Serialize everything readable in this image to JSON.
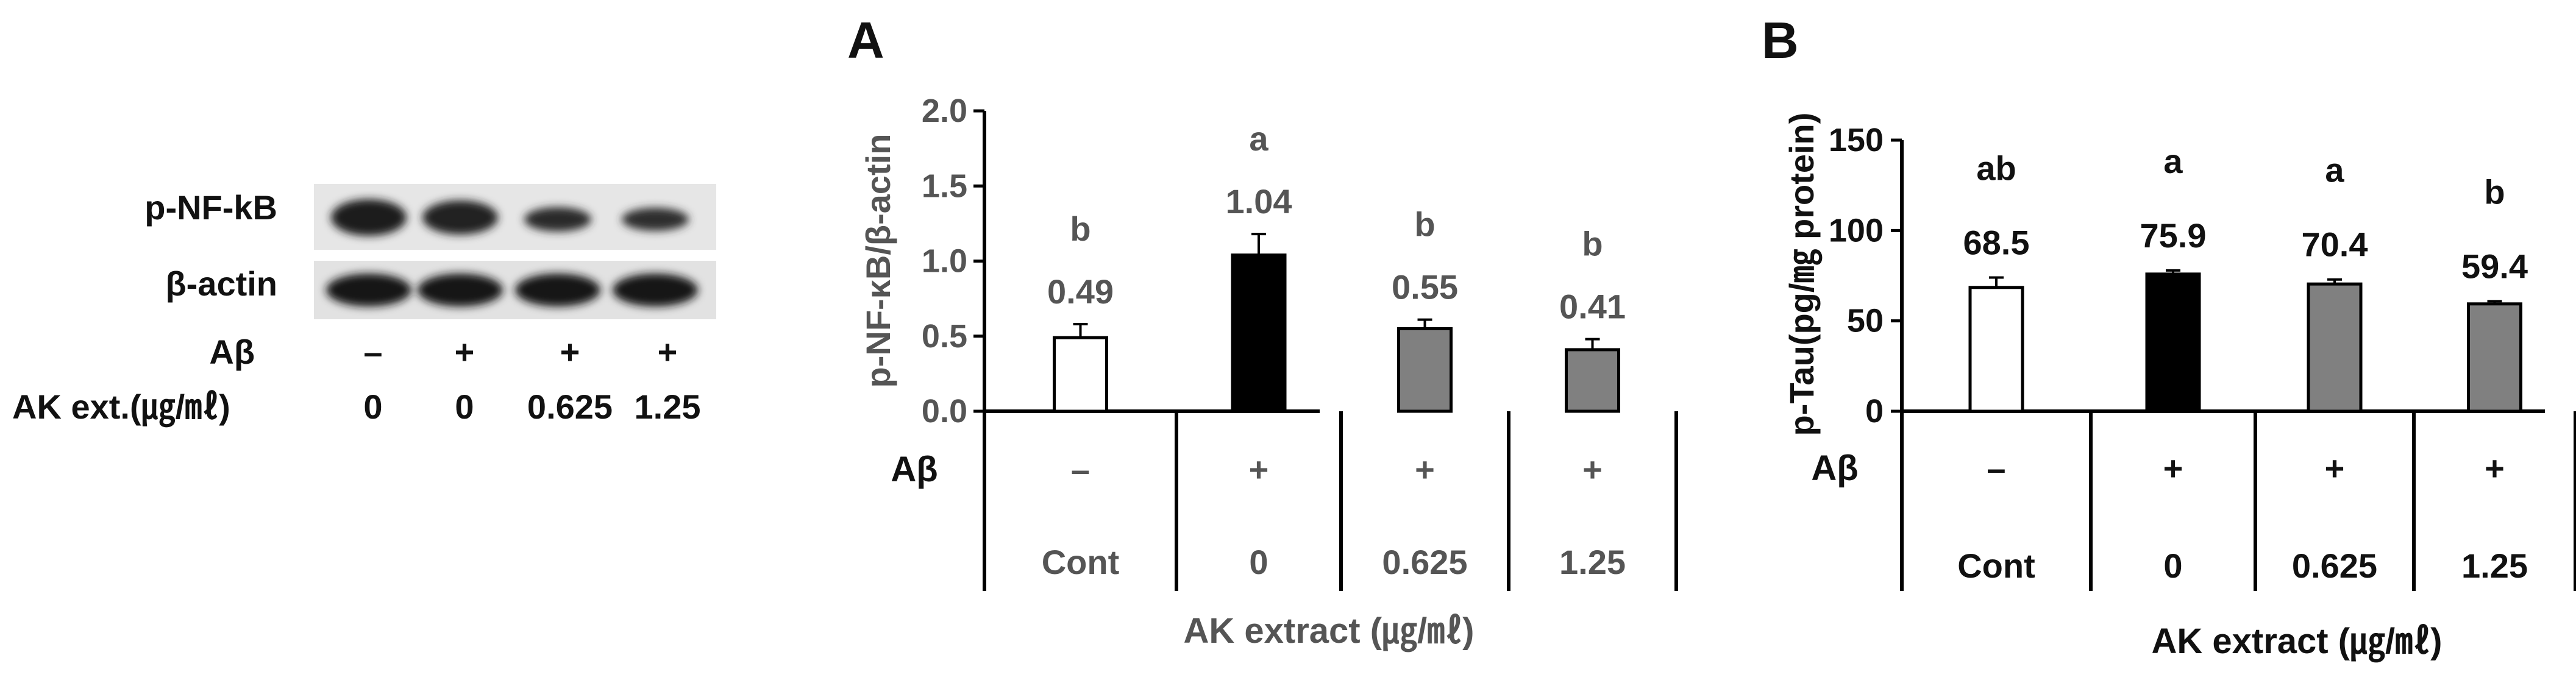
{
  "western_blot": {
    "row_labels": [
      "p-NF-kB",
      "β-actin"
    ],
    "treatment_label": "Aβ",
    "treatment_values": [
      "–",
      "+",
      "+",
      "+"
    ],
    "dose_label": "AK ext.(㎍/㎖)",
    "dose_values": [
      "0",
      "0",
      "0.625",
      "1.25"
    ]
  },
  "chart_data": [
    {
      "panel": "A",
      "type": "bar",
      "categories": [
        "Cont",
        "0",
        "0.625",
        "1.25"
      ],
      "treatment_label": "Aβ",
      "treatment_values": [
        "–",
        "+",
        "+",
        "+"
      ],
      "values": [
        0.49,
        1.04,
        0.55,
        0.41
      ],
      "errors": [
        0.09,
        0.14,
        0.06,
        0.07
      ],
      "value_labels": [
        "0.49",
        "1.04",
        "0.55",
        "0.41"
      ],
      "significance": [
        "b",
        "a",
        "b",
        "b"
      ],
      "bar_colors": [
        "#ffffff",
        "#000000",
        "#808080",
        "#808080"
      ],
      "ylabel": "p-NF-κB/β-actin",
      "xlabel": "AK extract (㎍/㎖)",
      "ylim": [
        0,
        2.0
      ],
      "yticks": [
        "0.0",
        "0.5",
        "1.0",
        "1.5",
        "2.0"
      ],
      "tick_values": [
        0,
        0.5,
        1.0,
        1.5,
        2.0
      ]
    },
    {
      "panel": "B",
      "type": "bar",
      "categories": [
        "Cont",
        "0",
        "0.625",
        "1.25"
      ],
      "treatment_label": "Aβ",
      "treatment_values": [
        "–",
        "+",
        "+",
        "+"
      ],
      "values": [
        68.5,
        75.9,
        70.4,
        59.4
      ],
      "errors": [
        5.5,
        2.0,
        2.5,
        1.5
      ],
      "value_labels": [
        "68.5",
        "75.9",
        "70.4",
        "59.4"
      ],
      "significance": [
        "ab",
        "a",
        "a",
        "b"
      ],
      "bar_colors": [
        "#ffffff",
        "#000000",
        "#808080",
        "#808080"
      ],
      "ylabel": "p-Tau(pg/㎎ protein)",
      "xlabel": "AK extract (㎍/㎖)",
      "ylim": [
        0,
        150
      ],
      "yticks": [
        "0",
        "50",
        "100",
        "150"
      ],
      "tick_values": [
        0,
        50,
        100,
        150
      ]
    }
  ]
}
